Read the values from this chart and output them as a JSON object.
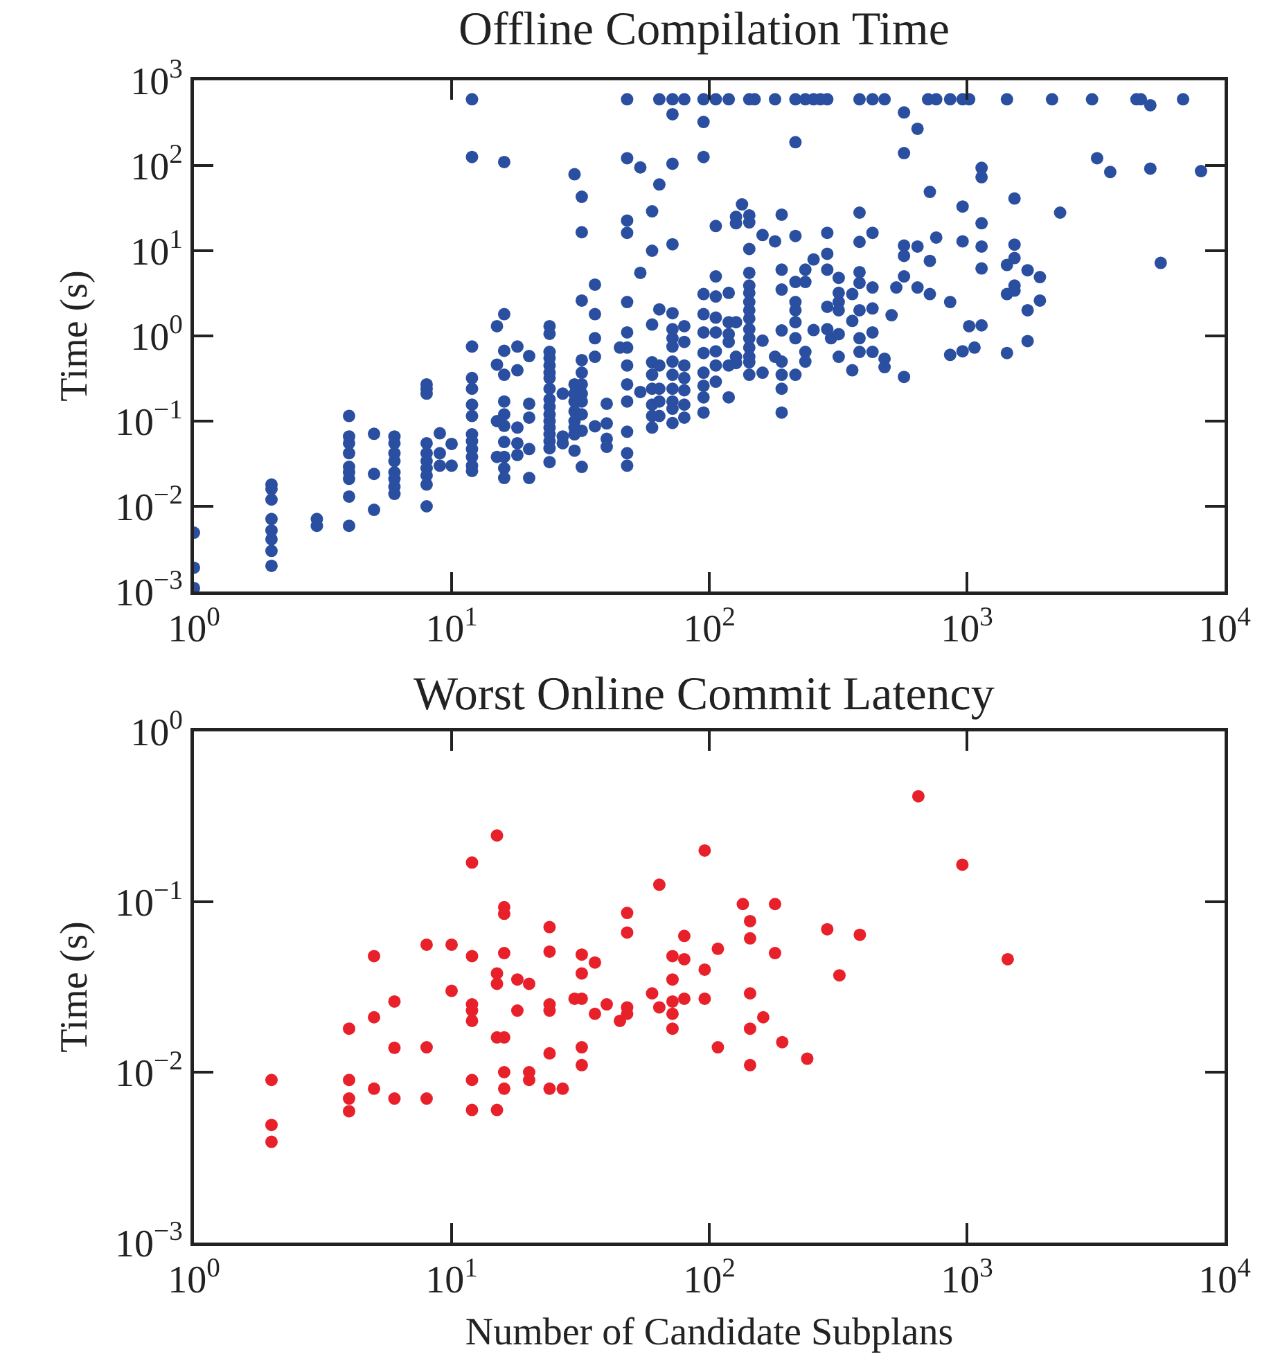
{
  "chart_data": [
    {
      "type": "scatter",
      "title": "Offline Compilation Time",
      "ylabel": "Time (s)",
      "color": "#2a4fa0",
      "marker": "circle",
      "log": "xy",
      "grid": false,
      "xlim": [
        1,
        10000
      ],
      "ylim": [
        0.001,
        1000
      ],
      "xticks": [
        {
          "value": 1,
          "label": "10$^{0}$"
        },
        {
          "value": 10,
          "label": "10$^{1}$"
        },
        {
          "value": 100,
          "label": "10$^{2}$"
        },
        {
          "value": 1000,
          "label": "10$^{3}$"
        },
        {
          "value": 10000,
          "label": "10$^{4}$"
        }
      ],
      "yticks": [
        {
          "value": 0.001,
          "label": "10$^{−3}$"
        },
        {
          "value": 0.01,
          "label": "10$^{−2}$"
        },
        {
          "value": 0.1,
          "label": "10$^{−1}$"
        },
        {
          "value": 1,
          "label": "10$^{0}$"
        },
        {
          "value": 10,
          "label": "10$^{1}$"
        },
        {
          "value": 100,
          "label": "10$^{2}$"
        },
        {
          "value": 1000,
          "label": "10$^{3}$"
        }
      ],
      "x": [
        1,
        1,
        1,
        2,
        2,
        2,
        2,
        2,
        2,
        2,
        2,
        3,
        3,
        4,
        4,
        4,
        4,
        4,
        4,
        4,
        4,
        4,
        5,
        5,
        5,
        6,
        6,
        6,
        6,
        6,
        6,
        6,
        6,
        8,
        8,
        8,
        8,
        8,
        8,
        8,
        8,
        8,
        8,
        9,
        9,
        9,
        10,
        10,
        12,
        12,
        12,
        12,
        12,
        12,
        12,
        12,
        12,
        12,
        12,
        12,
        12,
        15,
        15,
        15,
        15,
        16,
        16,
        16,
        16,
        16,
        16,
        16,
        16,
        16,
        16,
        16,
        18,
        18,
        18,
        18,
        18,
        20,
        20,
        20,
        20,
        20,
        24,
        24,
        24,
        24,
        24,
        24,
        24,
        24,
        24,
        24,
        24,
        24,
        24,
        24,
        24,
        24,
        24,
        27,
        27,
        27,
        30,
        30,
        30,
        30,
        30,
        30,
        30,
        30,
        30,
        32,
        32,
        32,
        32,
        32,
        32,
        32,
        32,
        32,
        32,
        32,
        36,
        36,
        36,
        36,
        36,
        40,
        40,
        40,
        40,
        45,
        48,
        48,
        48,
        48,
        48,
        48,
        48,
        48,
        48,
        48,
        48,
        48,
        48,
        54,
        54,
        54,
        60,
        60,
        60,
        60,
        60,
        60,
        60,
        60,
        60,
        64,
        64,
        64,
        64,
        64,
        64,
        64,
        72,
        72,
        72,
        72,
        72,
        72,
        72,
        72,
        72,
        72,
        72,
        72,
        72,
        72,
        80,
        80,
        80,
        80,
        80,
        80,
        80,
        80,
        95,
        95,
        95,
        95,
        95,
        95,
        95,
        95,
        95,
        95,
        95,
        106,
        106,
        106,
        106,
        106,
        106,
        106,
        106,
        106,
        119,
        119,
        119,
        119,
        119,
        119,
        119,
        127,
        127,
        127,
        127,
        127,
        134,
        143,
        143,
        143,
        143,
        143,
        143,
        143,
        143,
        143,
        143,
        143,
        143,
        143,
        143,
        143,
        143,
        150,
        161,
        161,
        161,
        180,
        180,
        180,
        191,
        191,
        191,
        191,
        191,
        191,
        191,
        191,
        216,
        216,
        216,
        216,
        216,
        216,
        216,
        216,
        216,
        236,
        236,
        236,
        236,
        236,
        254,
        254,
        254,
        270,
        287,
        287,
        287,
        287,
        287,
        287,
        297,
        318,
        318,
        318,
        318,
        318,
        318,
        359,
        359,
        359,
        383,
        383,
        383,
        383,
        383,
        383,
        383,
        383,
        430,
        430,
        430,
        430,
        430,
        430,
        479,
        479,
        479,
        510,
        532,
        570,
        570,
        570,
        570,
        570,
        570,
        643,
        643,
        643,
        707,
        718,
        718,
        718,
        760,
        760,
        861,
        861,
        861,
        962,
        962,
        962,
        962,
        1020,
        1020,
        1070,
        1140,
        1140,
        1140,
        1140,
        1140,
        1140,
        1430,
        1430,
        1430,
        1430,
        1530,
        1530,
        1530,
        1530,
        1530,
        1720,
        1720,
        1720,
        1920,
        1920,
        2140,
        2300,
        3060,
        3200,
        3600,
        4550,
        4730,
        5150,
        5150,
        5650,
        6900,
        8100
      ],
      "values": [
        0.0049,
        0.0019,
        0.0011,
        0.018,
        0.016,
        0.012,
        0.0071,
        0.0052,
        0.0041,
        0.003,
        0.002,
        0.0071,
        0.0059,
        0.115,
        0.066,
        0.055,
        0.042,
        0.029,
        0.025,
        0.021,
        0.013,
        0.0059,
        0.071,
        0.024,
        0.0091,
        0.066,
        0.055,
        0.042,
        0.034,
        0.025,
        0.021,
        0.017,
        0.014,
        0.27,
        0.24,
        0.21,
        0.055,
        0.042,
        0.034,
        0.028,
        0.023,
        0.018,
        0.01,
        0.072,
        0.042,
        0.03,
        0.054,
        0.03,
        600,
        126,
        0.75,
        0.32,
        0.24,
        0.156,
        0.115,
        0.07,
        0.058,
        0.047,
        0.038,
        0.03,
        0.026,
        1.3,
        0.46,
        0.1,
        0.038,
        110,
        1.8,
        0.67,
        0.35,
        0.17,
        0.12,
        0.088,
        0.057,
        0.038,
        0.028,
        0.0215,
        0.75,
        0.395,
        0.084,
        0.055,
        0.04,
        0.58,
        0.16,
        0.11,
        0.047,
        0.0215,
        1.3,
        1.06,
        0.65,
        0.55,
        0.45,
        0.37,
        0.32,
        0.24,
        0.18,
        0.147,
        0.12,
        0.1,
        0.084,
        0.07,
        0.058,
        0.048,
        0.033,
        0.21,
        0.066,
        0.055,
        79,
        0.27,
        0.21,
        0.17,
        0.13,
        0.1,
        0.084,
        0.07,
        0.045,
        43,
        16.5,
        2.6,
        0.52,
        0.37,
        0.27,
        0.21,
        0.17,
        0.12,
        0.077,
        0.029,
        4,
        1.8,
        0.94,
        0.57,
        0.087,
        0.16,
        0.094,
        0.062,
        0.05,
        0.73,
        600,
        122,
        22.6,
        16.2,
        2.5,
        1.1,
        0.73,
        0.45,
        0.27,
        0.17,
        0.075,
        0.042,
        0.03,
        95,
        5.5,
        0.22,
        29,
        10,
        1.36,
        0.49,
        0.35,
        0.24,
        0.156,
        0.115,
        0.084,
        600,
        60,
        2.05,
        0.45,
        0.24,
        0.17,
        0.115,
        600,
        400,
        105,
        11.9,
        1.85,
        1.2,
        0.94,
        0.75,
        0.5,
        0.35,
        0.24,
        0.17,
        0.14,
        0.095,
        600,
        1.3,
        0.85,
        0.45,
        0.32,
        0.23,
        0.156,
        0.11,
        600,
        325,
        126,
        3.1,
        1.8,
        1.1,
        0.63,
        0.37,
        0.26,
        0.19,
        0.126,
        600,
        19.5,
        5,
        2.9,
        1.64,
        1.1,
        0.66,
        0.45,
        0.29,
        600,
        3.2,
        1.45,
        1.05,
        0.85,
        0.45,
        0.19,
        25,
        21,
        1.45,
        0.57,
        0.48,
        35,
        600,
        26,
        21.5,
        10.5,
        5.5,
        3.9,
        3.2,
        2.5,
        2,
        1.6,
        1.2,
        0.94,
        0.73,
        0.57,
        0.49,
        0.35,
        600,
        15.3,
        0.88,
        0.37,
        600,
        12.9,
        0.57,
        26.5,
        6,
        3.5,
        1.16,
        0.5,
        0.35,
        0.24,
        0.126,
        600,
        188,
        14.9,
        4.3,
        2.5,
        2,
        1.45,
        0.94,
        0.35,
        600,
        6,
        4.3,
        0.65,
        0.5,
        600,
        7.9,
        1.17,
        600,
        600,
        16.2,
        9.2,
        6,
        2.2,
        1.2,
        0.94,
        4.8,
        3.2,
        2.5,
        2,
        1.05,
        0.57,
        3.1,
        1.5,
        0.395,
        600,
        28,
        12.7,
        5.6,
        4.2,
        2,
        0.94,
        0.65,
        600,
        16.2,
        3.7,
        2.1,
        1.1,
        0.65,
        600,
        0.54,
        0.43,
        1.75,
        3.7,
        420,
        140,
        11.5,
        8.7,
        5,
        0.33,
        270,
        11.2,
        3.7,
        600,
        49,
        7.6,
        3.1,
        600,
        14.3,
        600,
        2.5,
        0.6,
        600,
        33,
        12.9,
        0.66,
        600,
        1.3,
        0.73,
        94,
        73,
        21,
        11.2,
        6.2,
        1.33,
        600,
        6.8,
        3.1,
        0.63,
        41,
        11.8,
        8.2,
        3.9,
        3.4,
        5.9,
        2,
        0.87,
        4.9,
        2.6,
        600,
        28,
        600,
        122,
        84,
        600,
        600,
        510,
        92,
        7.2,
        600,
        86
      ]
    },
    {
      "type": "scatter",
      "title": "Worst Online Commit Latency",
      "xlabel": "Number of Candidate Subplans",
      "ylabel": "Time (s)",
      "color": "#e8202a",
      "marker": "circle",
      "log": "xy",
      "grid": false,
      "xlim": [
        1,
        10000
      ],
      "ylim": [
        0.001,
        1
      ],
      "xticks": [
        {
          "value": 1,
          "label": "10$^{0}$"
        },
        {
          "value": 10,
          "label": "10$^{1}$"
        },
        {
          "value": 100,
          "label": "10$^{2}$"
        },
        {
          "value": 1000,
          "label": "10$^{3}$"
        },
        {
          "value": 10000,
          "label": "10$^{4}$"
        }
      ],
      "yticks": [
        {
          "value": 0.001,
          "label": "10$^{−3}$"
        },
        {
          "value": 0.01,
          "label": "10$^{−2}$"
        },
        {
          "value": 0.1,
          "label": "10$^{−1}$"
        },
        {
          "value": 1,
          "label": "10$^{0}$"
        }
      ],
      "x": [
        2,
        2,
        2,
        4,
        4,
        4,
        4,
        5,
        5,
        5,
        6,
        6,
        6,
        8,
        8,
        8,
        10,
        10,
        12,
        12,
        12,
        12,
        12,
        12,
        12,
        15,
        15,
        15,
        15,
        15,
        16,
        16,
        16,
        16,
        16,
        16,
        18,
        18,
        20,
        20,
        20,
        24,
        24,
        24,
        24,
        24,
        24,
        27,
        30,
        32,
        32,
        32,
        32,
        32,
        36,
        36,
        40,
        45,
        48,
        48,
        48,
        48,
        60,
        64,
        64,
        72,
        72,
        72,
        72,
        72,
        80,
        80,
        80,
        96,
        96,
        96,
        108,
        108,
        135,
        144,
        144,
        144,
        144,
        144,
        162,
        180,
        180,
        192,
        240,
        287,
        320,
        384,
        648,
        960,
        1440
      ],
      "values": [
        0.009,
        0.0049,
        0.0039,
        0.018,
        0.009,
        0.007,
        0.0059,
        0.048,
        0.021,
        0.008,
        0.026,
        0.0139,
        0.007,
        0.056,
        0.014,
        0.007,
        0.056,
        0.03,
        0.17,
        0.048,
        0.025,
        0.023,
        0.02,
        0.009,
        0.006,
        0.245,
        0.038,
        0.033,
        0.016,
        0.006,
        0.093,
        0.085,
        0.05,
        0.016,
        0.01,
        0.008,
        0.035,
        0.023,
        0.033,
        0.01,
        0.009,
        0.071,
        0.051,
        0.025,
        0.023,
        0.0129,
        0.008,
        0.008,
        0.027,
        0.027,
        0.049,
        0.038,
        0.014,
        0.011,
        0.044,
        0.022,
        0.025,
        0.02,
        0.086,
        0.066,
        0.024,
        0.022,
        0.029,
        0.126,
        0.024,
        0.048,
        0.035,
        0.026,
        0.022,
        0.018,
        0.063,
        0.046,
        0.027,
        0.2,
        0.04,
        0.027,
        0.053,
        0.014,
        0.097,
        0.077,
        0.061,
        0.029,
        0.018,
        0.011,
        0.021,
        0.097,
        0.05,
        0.015,
        0.012,
        0.069,
        0.037,
        0.064,
        0.416,
        0.165,
        0.046
      ]
    }
  ]
}
